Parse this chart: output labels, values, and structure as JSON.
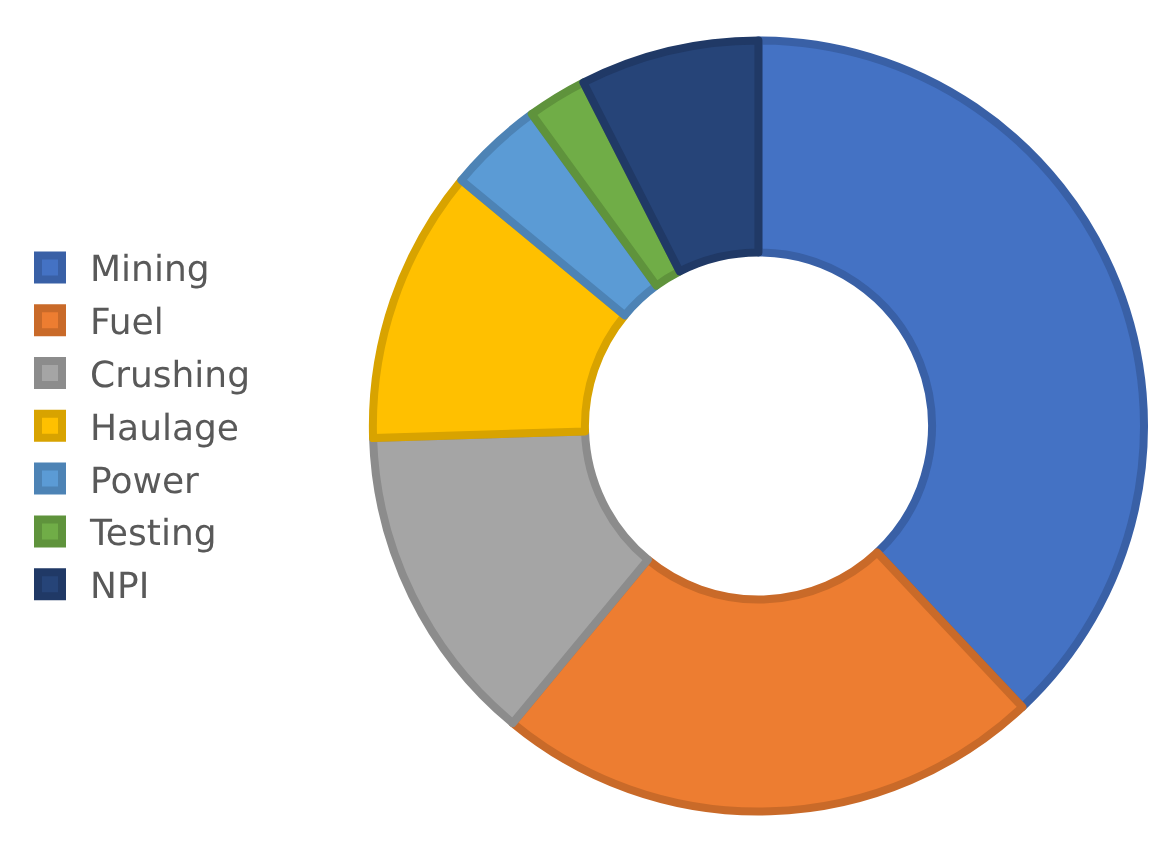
{
  "chart_data": {
    "type": "donut",
    "categories": [
      "Mining",
      "Fuel",
      "Crushing",
      "Haulage",
      "Power",
      "Testing",
      "NPI"
    ],
    "values": [
      38,
      23,
      13.5,
      11.5,
      4,
      2.5,
      7.5
    ],
    "colors": [
      "#4472c4",
      "#ed7d31",
      "#a5a5a5",
      "#ffc000",
      "#5b9bd5",
      "#70ad47",
      "#264478"
    ],
    "legend": "left"
  }
}
